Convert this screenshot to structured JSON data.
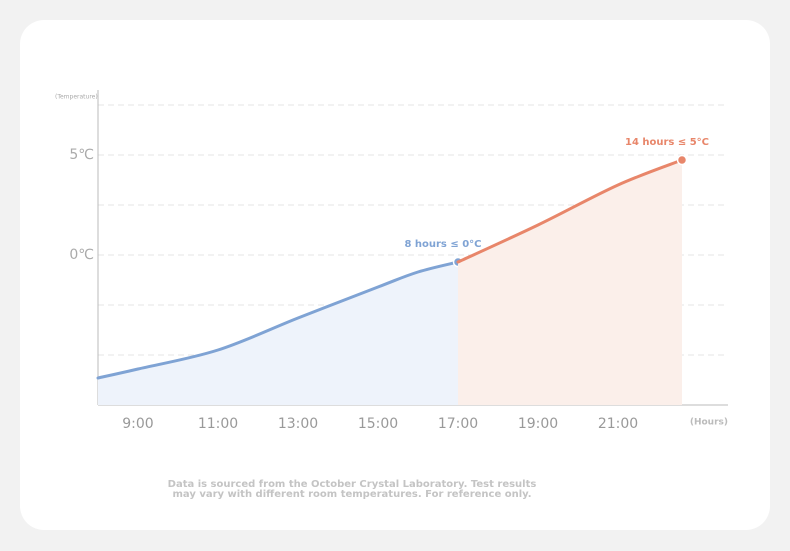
{
  "chart_data": {
    "type": "line",
    "y_label": "(Temperature)",
    "x_label": "(Hours)",
    "xlim": [
      8,
      23.75
    ],
    "xticks": [
      {
        "value": 9,
        "label": "9:00"
      },
      {
        "value": 11,
        "label": "11:00"
      },
      {
        "value": 13,
        "label": "13:00"
      },
      {
        "value": 15,
        "label": "15:00"
      },
      {
        "value": 17,
        "label": "17:00"
      },
      {
        "value": 19,
        "label": "19:00"
      },
      {
        "value": 21,
        "label": "21:00"
      }
    ],
    "ylim": [
      -7.5,
      7.5
    ],
    "yticks": [
      {
        "value": 0,
        "label": "0℃"
      },
      {
        "value": 5,
        "label": "5℃"
      }
    ],
    "minor_yticks": [
      -5,
      -2.5,
      2.5,
      7.5
    ],
    "grid": true,
    "series": [
      {
        "name": "8 hours ≤ 0°C",
        "color": "#7fa3d4",
        "fill": "#eef3fb",
        "x": [
          8,
          9,
          11,
          13,
          15,
          16,
          17
        ],
        "values": [
          -6.15,
          -5.7,
          -4.75,
          -3.15,
          -1.6,
          -0.85,
          -0.35
        ]
      },
      {
        "name": "14 hours ≤ 5°C",
        "color": "#e8866a",
        "fill": "#fbefea",
        "x": [
          17,
          19,
          21,
          22.6
        ],
        "values": [
          -0.35,
          1.5,
          3.5,
          4.75
        ]
      }
    ],
    "footnote": [
      "Data is sourced from the October Crystal Laboratory. Test results",
      "may vary with different room temperatures. For reference only."
    ]
  }
}
